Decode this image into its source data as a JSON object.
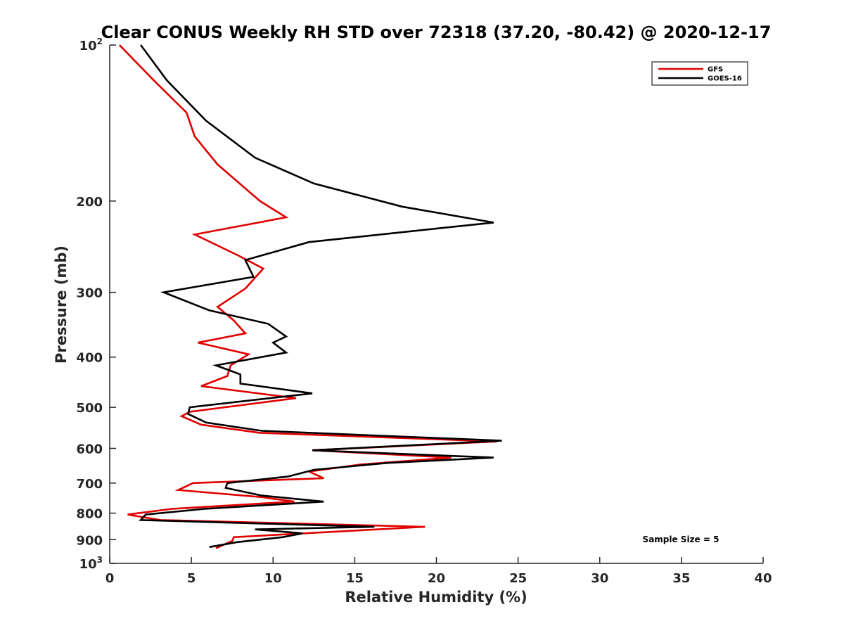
{
  "chart_data": {
    "type": "line",
    "title": "Clear CONUS Weekly RH STD over 72318 (37.20, -80.42) @ 2020-12-17",
    "xlabel": "Relative Humidity (%)",
    "ylabel": "Pressure (mb)",
    "xlim": [
      0,
      40
    ],
    "ylim": [
      100,
      1000
    ],
    "yscale": "log",
    "y_reversed": true,
    "x_ticks": [
      "0",
      "5",
      "10",
      "15",
      "20",
      "25",
      "30",
      "35",
      "40"
    ],
    "x_tick_values": [
      0,
      5,
      10,
      15,
      20,
      25,
      30,
      35,
      40
    ],
    "y_ticks": [
      {
        "value": 100,
        "base": "10",
        "exp": "2"
      },
      {
        "value": 200,
        "base": "200",
        "exp": ""
      },
      {
        "value": 300,
        "base": "300",
        "exp": ""
      },
      {
        "value": 400,
        "base": "400",
        "exp": ""
      },
      {
        "value": 500,
        "base": "500",
        "exp": ""
      },
      {
        "value": 600,
        "base": "600",
        "exp": ""
      },
      {
        "value": 700,
        "base": "700",
        "exp": ""
      },
      {
        "value": 800,
        "base": "800",
        "exp": ""
      },
      {
        "value": 900,
        "base": "900",
        "exp": ""
      },
      {
        "value": 1000,
        "base": "10",
        "exp": "3"
      }
    ],
    "grid": false,
    "legend_position": "top-right",
    "annotation": "Sample Size = 5",
    "series": [
      {
        "name": "GFS",
        "color": "#e00000",
        "points": [
          [
            0.6,
            100
          ],
          [
            2.7,
            117
          ],
          [
            4.7,
            135
          ],
          [
            5.2,
            150
          ],
          [
            6.6,
            170
          ],
          [
            9.2,
            200
          ],
          [
            10.8,
            215
          ],
          [
            5.2,
            232
          ],
          [
            7.9,
            255
          ],
          [
            9.4,
            270
          ],
          [
            8.3,
            295
          ],
          [
            6.6,
            320
          ],
          [
            7.6,
            340
          ],
          [
            8.3,
            360
          ],
          [
            5.4,
            375
          ],
          [
            8.5,
            395
          ],
          [
            7.4,
            415
          ],
          [
            7.2,
            435
          ],
          [
            5.6,
            455
          ],
          [
            11.4,
            480
          ],
          [
            4.9,
            510
          ],
          [
            4.4,
            520
          ],
          [
            5.6,
            540
          ],
          [
            9.2,
            560
          ],
          [
            23.7,
            582
          ],
          [
            12.4,
            605
          ],
          [
            20.9,
            625
          ],
          [
            15.3,
            645
          ],
          [
            12.2,
            665
          ],
          [
            13.1,
            685
          ],
          [
            5.1,
            700
          ],
          [
            4.2,
            722
          ],
          [
            9.3,
            745
          ],
          [
            11.3,
            760
          ],
          [
            3.8,
            785
          ],
          [
            1.1,
            805
          ],
          [
            3.1,
            825
          ],
          [
            19.3,
            850
          ],
          [
            13.4,
            870
          ],
          [
            7.6,
            890
          ],
          [
            7.5,
            905
          ],
          [
            6.5,
            935
          ]
        ]
      },
      {
        "name": "GOES-16",
        "color": "#000000",
        "points": [
          [
            1.9,
            100
          ],
          [
            3.5,
            117
          ],
          [
            5.9,
            140
          ],
          [
            8.9,
            165
          ],
          [
            12.5,
            185
          ],
          [
            17.9,
            205
          ],
          [
            23.5,
            220
          ],
          [
            12.2,
            240
          ],
          [
            8.3,
            260
          ],
          [
            8.8,
            280
          ],
          [
            3.3,
            300
          ],
          [
            6.1,
            325
          ],
          [
            9.7,
            345
          ],
          [
            10.8,
            365
          ],
          [
            10.0,
            375
          ],
          [
            10.8,
            392
          ],
          [
            6.5,
            415
          ],
          [
            7.4,
            425
          ],
          [
            8.0,
            432
          ],
          [
            8.0,
            450
          ],
          [
            12.4,
            470
          ],
          [
            4.9,
            500
          ],
          [
            4.8,
            515
          ],
          [
            5.9,
            535
          ],
          [
            9.3,
            555
          ],
          [
            24.0,
            580
          ],
          [
            12.4,
            605
          ],
          [
            23.5,
            625
          ],
          [
            17.0,
            640
          ],
          [
            12.5,
            660
          ],
          [
            10.9,
            680
          ],
          [
            7.2,
            700
          ],
          [
            7.1,
            715
          ],
          [
            9.3,
            740
          ],
          [
            13.1,
            760
          ],
          [
            5.8,
            785
          ],
          [
            2.2,
            805
          ],
          [
            1.9,
            825
          ],
          [
            16.2,
            850
          ],
          [
            8.9,
            860
          ],
          [
            11.8,
            875
          ],
          [
            10.6,
            890
          ],
          [
            7.8,
            910
          ],
          [
            6.1,
            930
          ]
        ]
      }
    ]
  }
}
